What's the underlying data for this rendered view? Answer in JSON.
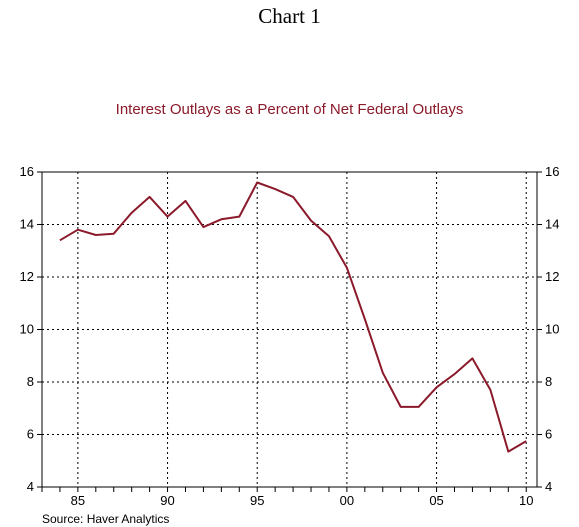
{
  "heading": "Chart 1",
  "source": "Source: Haver Analytics",
  "colors": {
    "series": "#8b1a2b",
    "title": "#8b1a2b",
    "axes": "#000000",
    "grid": "#000000"
  },
  "chart_data": {
    "type": "line",
    "title": "Interest Outlays as a Percent of Net Federal Outlays",
    "xlabel": "",
    "ylabel": "",
    "xlim": [
      1983,
      2010.6
    ],
    "ylim": [
      4,
      16
    ],
    "x_ticks": [
      {
        "value": 1985,
        "label": "85"
      },
      {
        "value": 1990,
        "label": "90"
      },
      {
        "value": 1995,
        "label": "95"
      },
      {
        "value": 2000,
        "label": "00"
      },
      {
        "value": 2005,
        "label": "05"
      },
      {
        "value": 2010,
        "label": "10"
      }
    ],
    "y_ticks": [
      4,
      6,
      8,
      10,
      12,
      14,
      16
    ],
    "grid": true,
    "dual_y_axis": true,
    "series": [
      {
        "values": [
          [
            1984,
            13.4
          ],
          [
            1985,
            13.8
          ],
          [
            1986,
            13.6
          ],
          [
            1987,
            13.65
          ],
          [
            1988,
            14.45
          ],
          [
            1989,
            15.05
          ],
          [
            1990,
            14.3
          ],
          [
            1991,
            14.9
          ],
          [
            1992,
            13.9
          ],
          [
            1993,
            14.2
          ],
          [
            1994,
            14.3
          ],
          [
            1995,
            15.6
          ],
          [
            1996,
            15.35
          ],
          [
            1997,
            15.05
          ],
          [
            1998,
            14.15
          ],
          [
            1999,
            13.55
          ],
          [
            2000,
            12.35
          ],
          [
            2001,
            10.4
          ],
          [
            2002,
            8.35
          ],
          [
            2003,
            7.05
          ],
          [
            2004,
            7.05
          ],
          [
            2005,
            7.8
          ],
          [
            2006,
            8.3
          ],
          [
            2007,
            8.9
          ],
          [
            2008,
            7.7
          ],
          [
            2009,
            5.35
          ],
          [
            2010,
            5.75
          ]
        ]
      }
    ]
  }
}
